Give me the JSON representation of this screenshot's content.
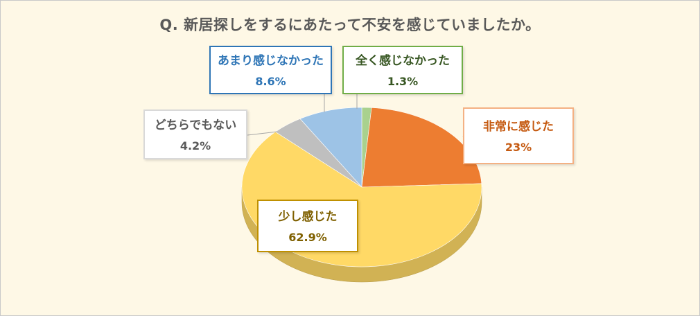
{
  "chart_data": {
    "type": "pie",
    "title": "Q. 新居探しをするにあたって不安を感じていましたか。",
    "slices": [
      {
        "label": "全く感じなかった",
        "value": 1.3,
        "display": "1.3%",
        "color": "#a9d18e",
        "label_color": "#385723",
        "border_color": "#70ad47"
      },
      {
        "label": "非常に感じた",
        "value": 23,
        "display": "23%",
        "color": "#ed7d31",
        "label_color": "#c55a11",
        "border_color": "#f4b183"
      },
      {
        "label": "少し感じた",
        "value": 62.9,
        "display": "62.9%",
        "color": "#ffd966",
        "label_color": "#7f6000",
        "border_color": "#bf9000"
      },
      {
        "label": "どちらでもない",
        "value": 4.2,
        "display": "4.2%",
        "color": "#bfbfbf",
        "label_color": "#595959",
        "border_color": "#d9d9d9"
      },
      {
        "label": "あまり感じなかった",
        "value": 8.6,
        "display": "8.6%",
        "color": "#9dc3e6",
        "label_color": "#2e75b6",
        "border_color": "#2e75b6"
      }
    ],
    "start_angle_deg": 0,
    "direction": "clockwise",
    "style": "3d-tilted",
    "legend": "none (callout labels)"
  }
}
